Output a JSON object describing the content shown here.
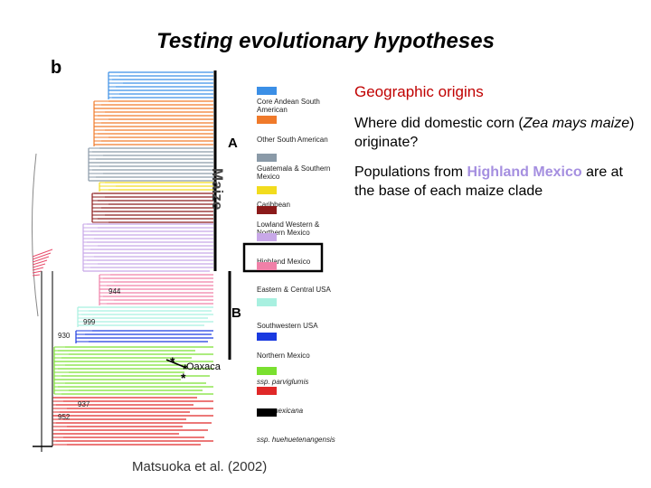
{
  "title": "Testing evolutionary hypotheses",
  "panel_letter": "b",
  "right": {
    "heading": "Geographic origins",
    "question_pre": "Where did domestic corn (",
    "question_italic": "Zea mays maize",
    "question_post": ") originate?",
    "pop_pre": "Populations from ",
    "pop_highlight": "Highland Mexico",
    "pop_post": " are at the base of each maize clade"
  },
  "credit": "Matsuoka et al. (2002)",
  "tree": {
    "maize_label": "Maize",
    "clade_a": "A",
    "clade_b": "B",
    "oaxaca": "Oaxaca",
    "nodes": [
      "944",
      "999",
      "930",
      "937",
      "952"
    ],
    "star": "*"
  },
  "legend": [
    {
      "label": "Core Andean South American",
      "color": "#3b8fe6"
    },
    {
      "label": "Other South American",
      "color": "#f07a2a"
    },
    {
      "label": "Guatemala & Southern Mexico",
      "color": "#8a9aa8"
    },
    {
      "label": "Caribbean",
      "color": "#f2dc1e"
    },
    {
      "label": "Lowland Western & Northern Mexico",
      "color": "#8b1a1a"
    },
    {
      "label": "Highland Mexico",
      "color": "#c8a8e8"
    },
    {
      "label": "Eastern & Central USA",
      "color": "#f080a8"
    },
    {
      "label": "Southwestern USA",
      "color": "#a8f0e0"
    },
    {
      "label": "Northern Mexico",
      "color": "#1a3ae0"
    },
    {
      "label": "ssp. parviglumis",
      "color": "#7ae030"
    },
    {
      "label": "ssp. mexicana",
      "color": "#e02828"
    },
    {
      "label": "ssp. huehuetenangensis",
      "color": "#000000"
    }
  ]
}
